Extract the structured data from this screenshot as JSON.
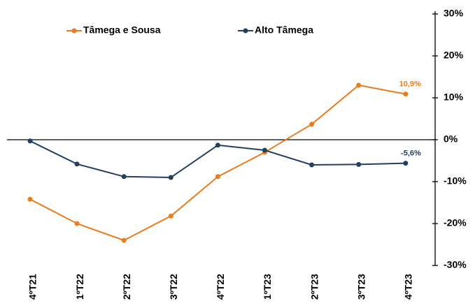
{
  "chart_data": {
    "type": "line",
    "categories": [
      "4ºT21",
      "1ºT22",
      "2ºT22",
      "3ºT22",
      "4ºT22",
      "1ºT23",
      "2ºT23",
      "3ºT23",
      "4ºT23"
    ],
    "series": [
      {
        "name": "Tâmega e Sousa",
        "color": "#e87d1e",
        "values": [
          -14.2,
          -20.0,
          -24.0,
          -18.2,
          -8.8,
          -3.0,
          3.7,
          13.0,
          10.9
        ],
        "value_labels": [
          null,
          null,
          null,
          null,
          null,
          null,
          null,
          null,
          "10,9%"
        ]
      },
      {
        "name": "Alto Tâmega",
        "color": "#243f60",
        "values": [
          -0.3,
          -5.8,
          -8.8,
          -9.0,
          -1.3,
          -2.5,
          -6.0,
          -5.9,
          -5.6
        ],
        "value_labels": [
          null,
          null,
          null,
          null,
          null,
          null,
          null,
          null,
          "-5,6%"
        ]
      }
    ],
    "ylim": [
      -30,
      30
    ],
    "yticks": [
      {
        "value": -30,
        "label": "-30%"
      },
      {
        "value": -20,
        "label": "-20%"
      },
      {
        "value": -10,
        "label": "-10%"
      },
      {
        "value": 0,
        "label": "0%"
      },
      {
        "value": 10,
        "label": "10%"
      },
      {
        "value": 20,
        "label": "20%"
      },
      {
        "value": 30,
        "label": "30%"
      }
    ],
    "legend": "top-left"
  }
}
